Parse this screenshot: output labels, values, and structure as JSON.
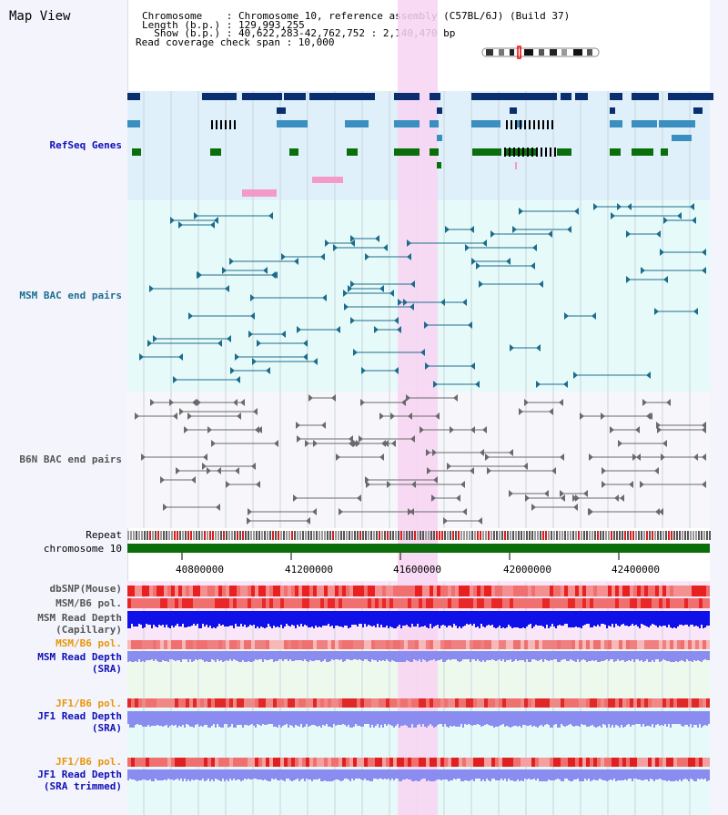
{
  "view_title": "Map View",
  "header": {
    "chromosome_line": "Chromosome    : Chromosome 10, reference assembly (C57BL/6J) (Build 37)",
    "length_line": "Length (b.p.) : 129,993,255",
    "show_line": "  Show (b.p.) : 40,622,283-42,762,752 : 2,140,470 bp",
    "coverage_line": "Read coverage check span : 10,000"
  },
  "tracks": {
    "refseq": "RefSeq Genes",
    "msm_bac": "MSM BAC end pairs",
    "b6n_bac": "B6N BAC end pairs",
    "repeat": "Repeat",
    "chromosome": "chromosome 10",
    "dbsnp": "dbSNP(Mouse)",
    "msm_b6_pol": "MSM/B6 pol.",
    "msm_depth_cap_1": "MSM Read Depth",
    "msm_depth_cap_2": "(Capillary)",
    "msm_b6_pol_sra": "MSM/B6 pol.",
    "msm_depth_sra_1": "MSM Read Depth",
    "msm_depth_sra_2": "(SRA)",
    "jf1_b6_pol": "JF1/B6 pol.",
    "jf1_depth_sra_1": "JF1 Read Depth",
    "jf1_depth_sra_2": "(SRA)",
    "jf1_b6_pol_trim": "JF1/B6 pol.",
    "jf1_depth_trim_1": "JF1 Read Depth",
    "jf1_depth_trim_2": "(SRA trimmed)"
  },
  "axis": {
    "ticks": [
      "40800000",
      "41200000",
      "41600000",
      "42000000",
      "42400000"
    ]
  },
  "colors": {
    "refseq_bg": "#dff0fa",
    "msm_bg": "#e6fafa",
    "b6n_bg": "#f7f7fb",
    "highlight": "#f8d4f2",
    "gene_dark": "#0b2e6e",
    "gene_mid": "#3b8ec0",
    "gene_green": "#0a6e0a",
    "msm_line": "#1d6c8c",
    "b6n_line": "#6a6a6a",
    "depth_blue": "#1010e8",
    "depth_light": "#8a8cf0",
    "label_blue": "#1010b8",
    "label_teal": "#1a6e8e",
    "label_gray": "#555555",
    "label_orange": "#e8960a"
  }
}
